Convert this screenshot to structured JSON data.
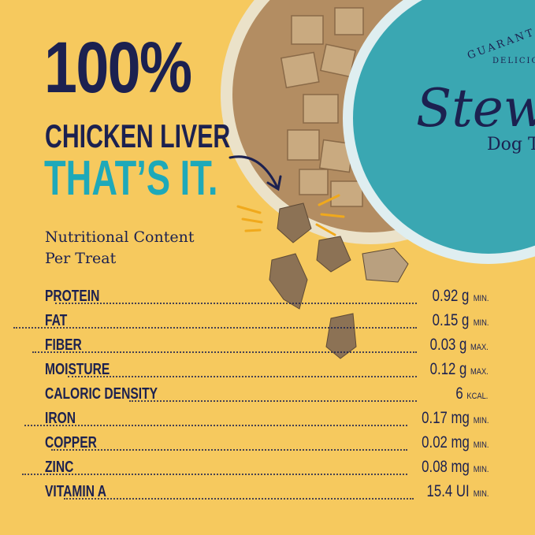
{
  "headline": {
    "line1": "100%",
    "line2": "CHICKEN LIVER",
    "line3": "THAT’S IT."
  },
  "subheading": {
    "line1": "Nutritional Content",
    "line2": "Per Treat"
  },
  "nutrients": [
    {
      "label": "PROTEIN",
      "value": "0.92 g",
      "qualifier": "MIN."
    },
    {
      "label": "FAT",
      "value": "0.15 g",
      "qualifier": "MIN."
    },
    {
      "label": "FIBER",
      "value": "0.03 g",
      "qualifier": "MAX."
    },
    {
      "label": "MOISTURE",
      "value": "0.12 g",
      "qualifier": "MAX."
    },
    {
      "label": "CALORIC DENSITY",
      "value": "6",
      "qualifier": "KCAL."
    },
    {
      "label": "IRON",
      "value": "0.17 mg",
      "qualifier": "MIN."
    },
    {
      "label": "COPPER",
      "value": "0.02 mg",
      "qualifier": "MIN."
    },
    {
      "label": "ZINC",
      "value": "0.08 mg",
      "qualifier": "MIN."
    },
    {
      "label": "VITAMIN A",
      "value": "15.4 UI",
      "qualifier": "MIN."
    }
  ],
  "product_lid": {
    "arc_text_1": "GUARANT",
    "arc_text_2": "DELICIOU",
    "brand": "Stew",
    "subtitle": "Dog T"
  },
  "colors": {
    "background": "#f6c95e",
    "navy": "#1c2150",
    "teal": "#1ea9b9",
    "lid": "#3aa7b2"
  }
}
